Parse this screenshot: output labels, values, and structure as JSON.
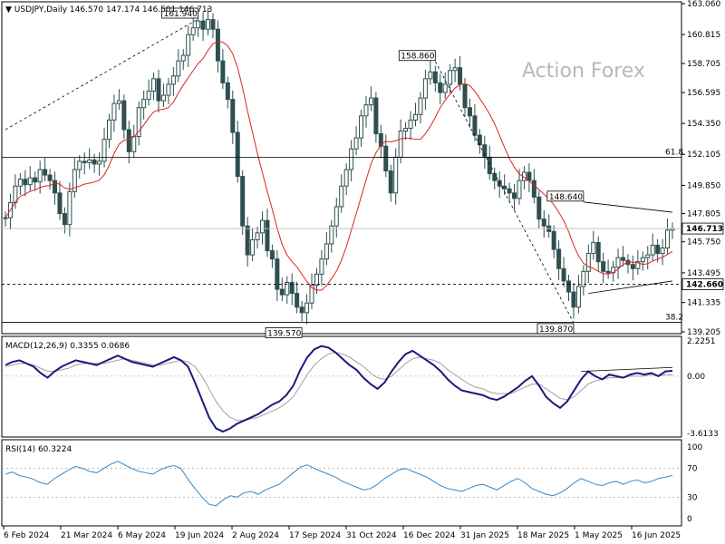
{
  "header": {
    "title": "▼ USDJPY,Daily  146.570 147.174 146.501 146.713"
  },
  "watermark": "Action Forex",
  "colors": {
    "candle": "#2f4f4f",
    "ma": "#e02020",
    "macd": "#1a1a80",
    "signal": "#a0a0a0",
    "rsi": "#3388cc",
    "grid": "#000000"
  },
  "chart_data": [
    {
      "type": "candlestick",
      "title": "USDJPY,Daily",
      "ohlc_last": {
        "open": 146.57,
        "high": 147.174,
        "low": 146.501,
        "close": 146.713
      },
      "ylim": [
        139.205,
        163.06
      ],
      "yticks": [
        "163.060",
        "160.815",
        "158.705",
        "156.595",
        "154.350",
        "152.105",
        "149.850",
        "147.805",
        "145.750",
        "143.495",
        "141.335",
        "139.205"
      ],
      "xticks": [
        "6 Feb 2024",
        "21 Mar 2024",
        "6 May 2024",
        "19 Jun 2024",
        "2 Aug 2024",
        "17 Sep 2024",
        "31 Oct 2024",
        "16 Dec 2024",
        "31 Jan 2025",
        "18 Mar 2025",
        "1 May 2025",
        "16 Jun 2025"
      ],
      "annotations": [
        {
          "text": "161.940",
          "x": "3 Jul 2024",
          "y": 161.94
        },
        {
          "text": "139.570",
          "x": "16 Sep 2024",
          "y": 139.57
        },
        {
          "text": "158.860",
          "x": "10 Jan 2025",
          "y": 158.86
        },
        {
          "text": "148.640",
          "x": "28 Mar 2025",
          "y": 148.64
        },
        {
          "text": "139.870",
          "x": "22 Apr 2025",
          "y": 139.87
        }
      ],
      "levels": [
        {
          "text": "61.8",
          "y": 151.9
        },
        {
          "text": "38.2",
          "y": 139.9
        },
        {
          "text": "142.660",
          "y": 142.66
        },
        {
          "text": "146.713",
          "y": 146.713
        }
      ],
      "moving_average": "red",
      "series": [
        {
          "values": [
            147.5,
            148.6,
            149.8,
            150.3,
            149.9,
            150.4,
            150.1,
            151.0,
            150.6,
            150.2,
            149.3,
            147.8,
            147.0,
            149.4,
            151.0,
            151.6,
            151.5,
            151.7,
            151.4,
            151.6,
            153.2,
            154.6,
            155.8,
            156.0,
            153.9,
            152.3,
            153.4,
            155.5,
            156.1,
            156.7,
            157.6,
            156.0,
            156.4,
            157.2,
            157.8,
            158.9,
            159.3,
            160.8,
            161.3,
            161.8,
            161.2,
            161.9,
            161.2,
            158.9,
            157.3,
            156.1,
            153.7,
            150.5,
            146.9,
            144.8,
            145.9,
            146.4,
            147.3,
            145.1,
            144.5,
            142.3,
            141.9,
            142.8,
            142.0,
            141.0,
            140.6,
            141.3,
            142.6,
            143.4,
            144.5,
            145.6,
            146.9,
            148.3,
            149.8,
            151.0,
            152.5,
            153.3,
            154.9,
            155.7,
            156.2,
            153.6,
            152.7,
            150.9,
            149.3,
            151.9,
            153.8,
            154.0,
            154.6,
            155.0,
            156.2,
            157.6,
            158.1,
            157.3,
            156.6,
            157.2,
            158.2,
            158.4,
            157.2,
            155.5,
            154.9,
            153.5,
            152.8,
            151.9,
            150.7,
            150.2,
            149.8,
            149.6,
            149.3,
            148.9,
            150.2,
            150.8,
            150.2,
            149.0,
            147.4,
            146.9,
            146.5,
            145.2,
            143.8,
            142.9,
            142.1,
            141.0,
            142.5,
            143.6,
            144.9,
            145.7,
            144.3,
            143.6,
            143.5,
            143.9,
            144.6,
            144.4,
            144.1,
            143.8,
            144.3,
            144.6,
            144.8,
            145.5,
            144.9,
            145.3,
            146.6,
            146.713
          ]
        }
      ]
    },
    {
      "type": "line",
      "title": "MACD(12,26,9) 0.3355 0.0686",
      "ylim": [
        -3.6133,
        2.2251
      ],
      "yticks": [
        "2.2251",
        "0.00",
        "-3.6133"
      ],
      "series": [
        {
          "name": "MACD",
          "values": [
            0.7,
            0.9,
            1.0,
            0.8,
            0.6,
            0.2,
            -0.1,
            0.3,
            0.6,
            0.8,
            1.0,
            0.9,
            0.8,
            0.7,
            0.9,
            1.1,
            1.3,
            1.1,
            0.9,
            0.8,
            0.7,
            0.6,
            0.8,
            1.0,
            1.2,
            1.0,
            0.6,
            -0.4,
            -1.5,
            -2.6,
            -3.3,
            -3.5,
            -3.3,
            -3.0,
            -2.8,
            -2.6,
            -2.4,
            -2.1,
            -1.8,
            -1.6,
            -1.2,
            -0.6,
            0.4,
            1.2,
            1.7,
            1.9,
            1.8,
            1.5,
            1.1,
            0.7,
            0.4,
            -0.1,
            -0.5,
            -0.8,
            -0.4,
            0.3,
            0.9,
            1.4,
            1.6,
            1.3,
            1.0,
            0.7,
            0.3,
            -0.2,
            -0.6,
            -0.9,
            -1.0,
            -1.1,
            -1.2,
            -1.4,
            -1.5,
            -1.3,
            -1.0,
            -0.7,
            -0.3,
            0.0,
            -0.6,
            -1.3,
            -1.7,
            -2.0,
            -1.6,
            -0.9,
            -0.2,
            0.3,
            0.0,
            -0.2,
            0.1,
            0.0,
            -0.1,
            0.1,
            0.2,
            0.1,
            0.2,
            0.0,
            0.3,
            0.3355
          ]
        },
        {
          "name": "Signal",
          "values": [
            0.6,
            0.7,
            0.8,
            0.8,
            0.7,
            0.5,
            0.3,
            0.3,
            0.4,
            0.5,
            0.7,
            0.8,
            0.8,
            0.8,
            0.8,
            0.9,
            1.0,
            1.1,
            1.0,
            0.9,
            0.8,
            0.7,
            0.7,
            0.8,
            0.9,
            1.0,
            0.9,
            0.6,
            0.0,
            -0.8,
            -1.6,
            -2.2,
            -2.6,
            -2.8,
            -2.8,
            -2.7,
            -2.6,
            -2.4,
            -2.2,
            -2.0,
            -1.7,
            -1.3,
            -0.6,
            0.1,
            0.7,
            1.1,
            1.4,
            1.5,
            1.4,
            1.2,
            0.9,
            0.6,
            0.2,
            -0.1,
            -0.2,
            0.0,
            0.4,
            0.8,
            1.1,
            1.2,
            1.1,
            1.0,
            0.8,
            0.4,
            0.1,
            -0.2,
            -0.5,
            -0.7,
            -0.8,
            -1.0,
            -1.1,
            -1.1,
            -1.1,
            -0.9,
            -0.7,
            -0.5,
            -0.5,
            -0.8,
            -1.1,
            -1.4,
            -1.5,
            -1.3,
            -0.9,
            -0.5,
            -0.3,
            -0.2,
            -0.1,
            -0.1,
            -0.1,
            0.0,
            0.0,
            0.0,
            0.1,
            0.0,
            0.1,
            0.0686
          ]
        }
      ]
    },
    {
      "type": "line",
      "title": "RSI(14) 60.3224",
      "ylim": [
        0,
        100
      ],
      "yticks": [
        "100",
        "70",
        "30",
        "0"
      ],
      "series": [
        {
          "name": "RSI",
          "values": [
            62,
            65,
            60,
            58,
            55,
            50,
            48,
            56,
            62,
            68,
            73,
            70,
            66,
            64,
            70,
            76,
            80,
            75,
            70,
            66,
            64,
            62,
            68,
            72,
            74,
            70,
            55,
            42,
            30,
            20,
            18,
            26,
            32,
            30,
            36,
            38,
            34,
            40,
            44,
            48,
            56,
            64,
            72,
            75,
            70,
            66,
            62,
            58,
            52,
            48,
            44,
            40,
            42,
            48,
            56,
            62,
            68,
            70,
            66,
            62,
            58,
            52,
            46,
            42,
            40,
            38,
            42,
            46,
            48,
            44,
            40,
            46,
            52,
            56,
            50,
            42,
            38,
            34,
            32,
            36,
            42,
            50,
            56,
            52,
            48,
            46,
            50,
            52,
            48,
            52,
            54,
            50,
            52,
            56,
            58,
            60.3224
          ]
        }
      ]
    }
  ]
}
